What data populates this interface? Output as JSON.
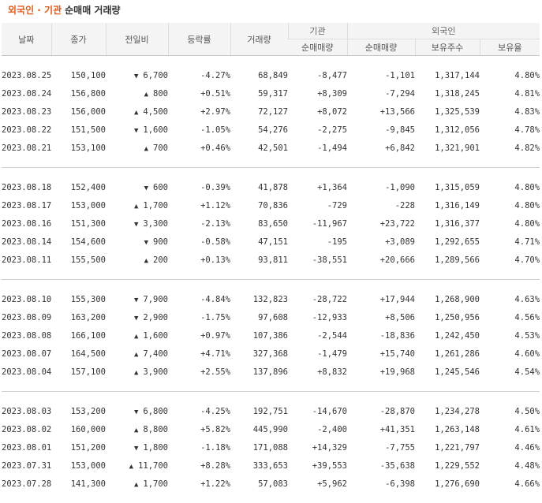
{
  "title": {
    "highlight": "외국인 · 기관",
    "rest": "순매매 거래량"
  },
  "header": {
    "date": "날짜",
    "close": "종가",
    "change": "전일비",
    "rate": "등락률",
    "volume": "거래량",
    "inst_group": "기관",
    "foreign_group": "외국인",
    "inst_net": "순매매량",
    "foreign_net": "순매매량",
    "holdings": "보유주수",
    "ratio": "보유율"
  },
  "colors": {
    "up": "#e22822",
    "down": "#2a6ed4",
    "title_accent": "#e05a1d"
  },
  "groups": [
    [
      {
        "date": "2023.08.25",
        "close": "150,100",
        "dir": "down",
        "change": "6,700",
        "rate": "-4.27%",
        "volume": "68,849",
        "inst": "-8,477",
        "foreign": "-1,101",
        "holdings": "1,317,144",
        "ratio": "4.80%"
      },
      {
        "date": "2023.08.24",
        "close": "156,800",
        "dir": "up",
        "change": "800",
        "rate": "+0.51%",
        "volume": "59,317",
        "inst": "+8,309",
        "foreign": "-7,294",
        "holdings": "1,318,245",
        "ratio": "4.81%"
      },
      {
        "date": "2023.08.23",
        "close": "156,000",
        "dir": "up",
        "change": "4,500",
        "rate": "+2.97%",
        "volume": "72,127",
        "inst": "+8,072",
        "foreign": "+13,566",
        "holdings": "1,325,539",
        "ratio": "4.83%"
      },
      {
        "date": "2023.08.22",
        "close": "151,500",
        "dir": "down",
        "change": "1,600",
        "rate": "-1.05%",
        "volume": "54,276",
        "inst": "-2,275",
        "foreign": "-9,845",
        "holdings": "1,312,056",
        "ratio": "4.78%"
      },
      {
        "date": "2023.08.21",
        "close": "153,100",
        "dir": "up",
        "change": "700",
        "rate": "+0.46%",
        "volume": "42,501",
        "inst": "-1,494",
        "foreign": "+6,842",
        "holdings": "1,321,901",
        "ratio": "4.82%"
      }
    ],
    [
      {
        "date": "2023.08.18",
        "close": "152,400",
        "dir": "down",
        "change": "600",
        "rate": "-0.39%",
        "volume": "41,878",
        "inst": "+1,364",
        "foreign": "-1,090",
        "holdings": "1,315,059",
        "ratio": "4.80%"
      },
      {
        "date": "2023.08.17",
        "close": "153,000",
        "dir": "up",
        "change": "1,700",
        "rate": "+1.12%",
        "volume": "70,836",
        "inst": "-729",
        "foreign": "-228",
        "holdings": "1,316,149",
        "ratio": "4.80%"
      },
      {
        "date": "2023.08.16",
        "close": "151,300",
        "dir": "down",
        "change": "3,300",
        "rate": "-2.13%",
        "volume": "83,650",
        "inst": "-11,967",
        "foreign": "+23,722",
        "holdings": "1,316,377",
        "ratio": "4.80%"
      },
      {
        "date": "2023.08.14",
        "close": "154,600",
        "dir": "down",
        "change": "900",
        "rate": "-0.58%",
        "volume": "47,151",
        "inst": "-195",
        "foreign": "+3,089",
        "holdings": "1,292,655",
        "ratio": "4.71%"
      },
      {
        "date": "2023.08.11",
        "close": "155,500",
        "dir": "up",
        "change": "200",
        "rate": "+0.13%",
        "volume": "93,811",
        "inst": "-38,551",
        "foreign": "+20,666",
        "holdings": "1,289,566",
        "ratio": "4.70%"
      }
    ],
    [
      {
        "date": "2023.08.10",
        "close": "155,300",
        "dir": "down",
        "change": "7,900",
        "rate": "-4.84%",
        "volume": "132,823",
        "inst": "-28,722",
        "foreign": "+17,944",
        "holdings": "1,268,900",
        "ratio": "4.63%"
      },
      {
        "date": "2023.08.09",
        "close": "163,200",
        "dir": "down",
        "change": "2,900",
        "rate": "-1.75%",
        "volume": "97,608",
        "inst": "-12,933",
        "foreign": "+8,506",
        "holdings": "1,250,956",
        "ratio": "4.56%"
      },
      {
        "date": "2023.08.08",
        "close": "166,100",
        "dir": "up",
        "change": "1,600",
        "rate": "+0.97%",
        "volume": "107,386",
        "inst": "-2,544",
        "foreign": "-18,836",
        "holdings": "1,242,450",
        "ratio": "4.53%"
      },
      {
        "date": "2023.08.07",
        "close": "164,500",
        "dir": "up",
        "change": "7,400",
        "rate": "+4.71%",
        "volume": "327,368",
        "inst": "-1,479",
        "foreign": "+15,740",
        "holdings": "1,261,286",
        "ratio": "4.60%"
      },
      {
        "date": "2023.08.04",
        "close": "157,100",
        "dir": "up",
        "change": "3,900",
        "rate": "+2.55%",
        "volume": "137,896",
        "inst": "+8,832",
        "foreign": "+19,968",
        "holdings": "1,245,546",
        "ratio": "4.54%"
      }
    ],
    [
      {
        "date": "2023.08.03",
        "close": "153,200",
        "dir": "down",
        "change": "6,800",
        "rate": "-4.25%",
        "volume": "192,751",
        "inst": "-14,670",
        "foreign": "-28,870",
        "holdings": "1,234,278",
        "ratio": "4.50%"
      },
      {
        "date": "2023.08.02",
        "close": "160,000",
        "dir": "up",
        "change": "8,800",
        "rate": "+5.82%",
        "volume": "445,990",
        "inst": "-2,400",
        "foreign": "+41,351",
        "holdings": "1,263,148",
        "ratio": "4.61%"
      },
      {
        "date": "2023.08.01",
        "close": "151,200",
        "dir": "down",
        "change": "1,800",
        "rate": "-1.18%",
        "volume": "171,088",
        "inst": "+14,329",
        "foreign": "-7,755",
        "holdings": "1,221,797",
        "ratio": "4.46%"
      },
      {
        "date": "2023.07.31",
        "close": "153,000",
        "dir": "up",
        "change": "11,700",
        "rate": "+8.28%",
        "volume": "333,653",
        "inst": "+39,553",
        "foreign": "-35,638",
        "holdings": "1,229,552",
        "ratio": "4.48%"
      },
      {
        "date": "2023.07.28",
        "close": "141,300",
        "dir": "up",
        "change": "1,700",
        "rate": "+1.22%",
        "volume": "57,083",
        "inst": "+5,962",
        "foreign": "-6,398",
        "holdings": "1,276,690",
        "ratio": "4.66%"
      }
    ]
  ]
}
